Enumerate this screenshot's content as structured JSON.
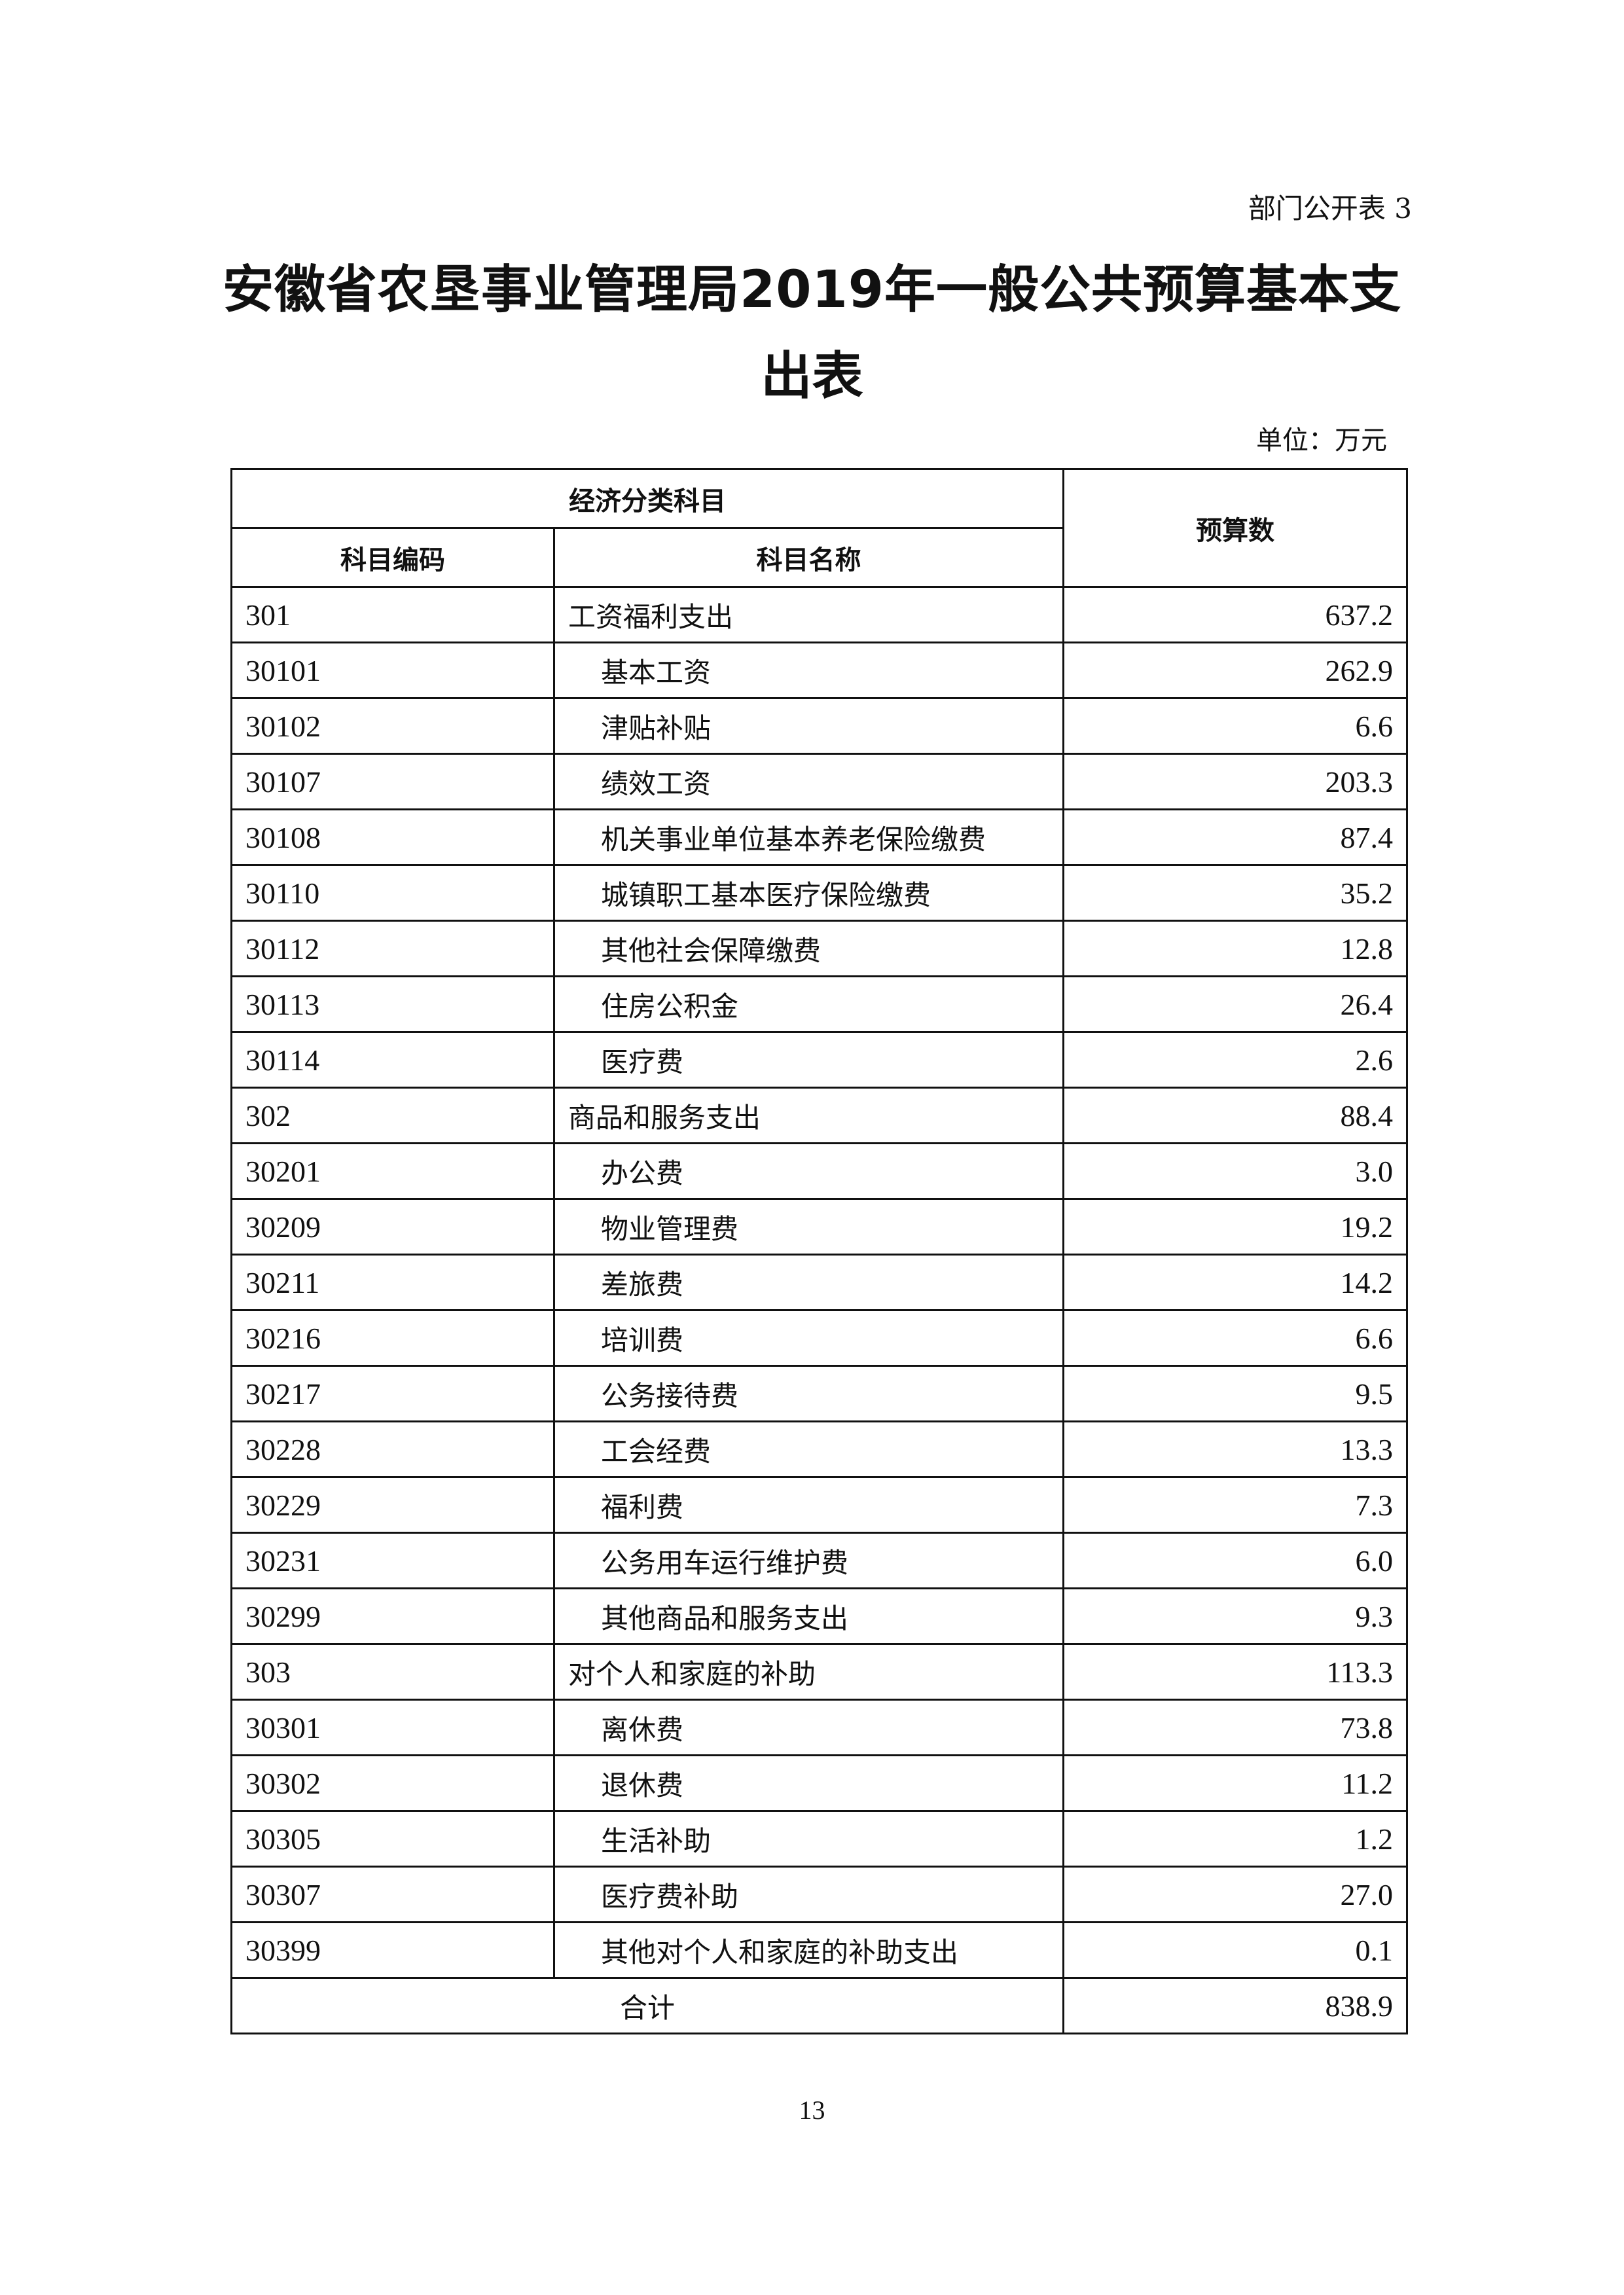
{
  "form_no": "部门公开表 3",
  "title_line1": "安徽省农垦事业管理局2019年一般公共预算基本支",
  "title_line2": "出表",
  "unit": "单位：万元",
  "table": {
    "group_header": "经济分类科目",
    "col_code": "科目编码",
    "col_name": "科目名称",
    "col_amount": "预算数",
    "rows": [
      {
        "code": "301",
        "name": "工资福利支出",
        "amount": "637.2",
        "level": 1
      },
      {
        "code": "30101",
        "name": "基本工资",
        "amount": "262.9",
        "level": 2
      },
      {
        "code": "30102",
        "name": "津贴补贴",
        "amount": "6.6",
        "level": 2
      },
      {
        "code": "30107",
        "name": "绩效工资",
        "amount": "203.3",
        "level": 2
      },
      {
        "code": "30108",
        "name": "机关事业单位基本养老保险缴费",
        "amount": "87.4",
        "level": 2
      },
      {
        "code": "30110",
        "name": "城镇职工基本医疗保险缴费",
        "amount": "35.2",
        "level": 2
      },
      {
        "code": "30112",
        "name": "其他社会保障缴费",
        "amount": "12.8",
        "level": 2
      },
      {
        "code": "30113",
        "name": "住房公积金",
        "amount": "26.4",
        "level": 2
      },
      {
        "code": "30114",
        "name": "医疗费",
        "amount": "2.6",
        "level": 2
      },
      {
        "code": "302",
        "name": "商品和服务支出",
        "amount": "88.4",
        "level": 1
      },
      {
        "code": "30201",
        "name": "办公费",
        "amount": "3.0",
        "level": 2
      },
      {
        "code": "30209",
        "name": "物业管理费",
        "amount": "19.2",
        "level": 2
      },
      {
        "code": "30211",
        "name": "差旅费",
        "amount": "14.2",
        "level": 2
      },
      {
        "code": "30216",
        "name": "培训费",
        "amount": "6.6",
        "level": 2
      },
      {
        "code": "30217",
        "name": "公务接待费",
        "amount": "9.5",
        "level": 2
      },
      {
        "code": "30228",
        "name": "工会经费",
        "amount": "13.3",
        "level": 2
      },
      {
        "code": "30229",
        "name": "福利费",
        "amount": "7.3",
        "level": 2
      },
      {
        "code": "30231",
        "name": "公务用车运行维护费",
        "amount": "6.0",
        "level": 2
      },
      {
        "code": "30299",
        "name": "其他商品和服务支出",
        "amount": "9.3",
        "level": 2
      },
      {
        "code": "303",
        "name": "对个人和家庭的补助",
        "amount": "113.3",
        "level": 1
      },
      {
        "code": "30301",
        "name": "离休费",
        "amount": "73.8",
        "level": 2
      },
      {
        "code": "30302",
        "name": "退休费",
        "amount": "11.2",
        "level": 2
      },
      {
        "code": "30305",
        "name": "生活补助",
        "amount": "1.2",
        "level": 2
      },
      {
        "code": "30307",
        "name": "医疗费补助",
        "amount": "27.0",
        "level": 2
      },
      {
        "code": "30399",
        "name": "其他对个人和家庭的补助支出",
        "amount": "0.1",
        "level": 2
      }
    ],
    "total_label": "合计",
    "total_amount": "838.9"
  },
  "page_number": "13"
}
